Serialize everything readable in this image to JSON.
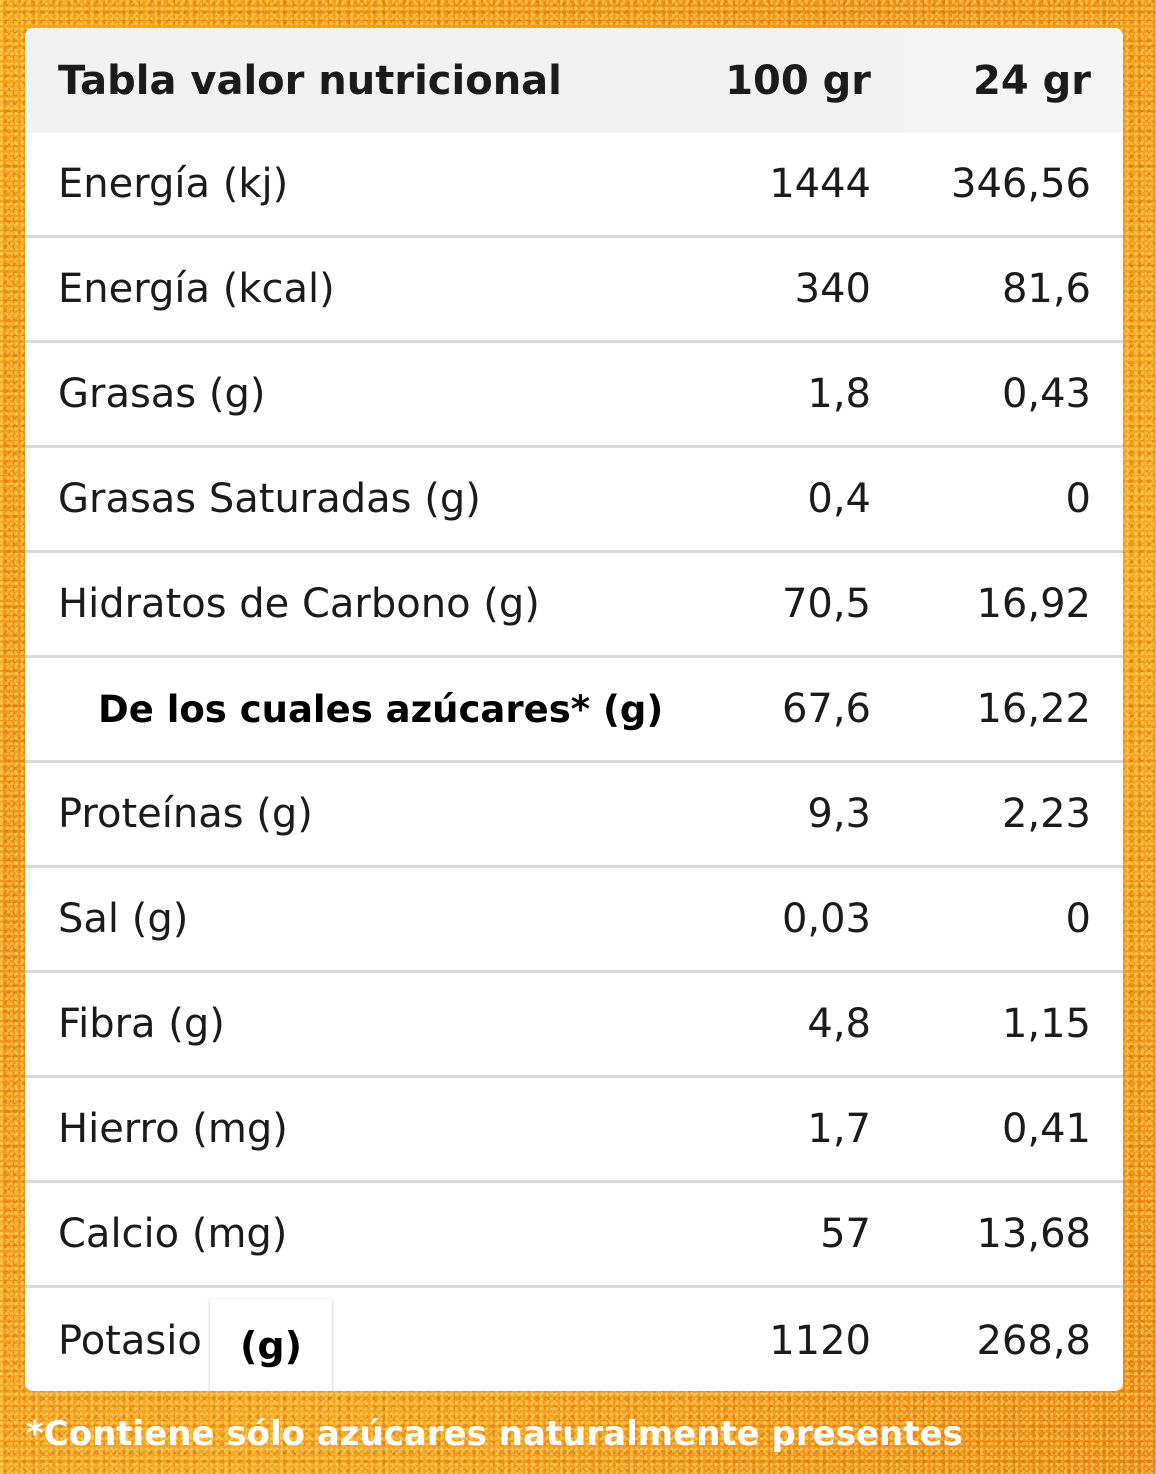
{
  "table": {
    "header": {
      "title": "Tabla valor nutricional",
      "col1": "100 gr",
      "col2": "24 gr"
    },
    "rows": [
      {
        "name": "Energía (kj)",
        "v100": "1444",
        "v24": "346,56"
      },
      {
        "name": "Energía (kcal)",
        "v100": "340",
        "v24": "81,6"
      },
      {
        "name": "Grasas (g)",
        "v100": "1,8",
        "v24": "0,43"
      },
      {
        "name": "Grasas Saturadas (g)",
        "v100": "0,4",
        "v24": "0"
      },
      {
        "name": "Hidratos de Carbono (g)",
        "v100": "70,5",
        "v24": "16,92"
      },
      {
        "name": "De los cuales azúcares* (g)",
        "v100": "67,6",
        "v24": "16,22"
      },
      {
        "name": "Proteínas (g)",
        "v100": "9,3",
        "v24": "2,23"
      },
      {
        "name": "Sal (g)",
        "v100": "0,03",
        "v24": "0"
      },
      {
        "name": "Fibra (g)",
        "v100": "4,8",
        "v24": "1,15"
      },
      {
        "name": "Hierro (mg)",
        "v100": "1,7",
        "v24": "0,41"
      },
      {
        "name": "Calcio (mg)",
        "v100": "57",
        "v24": "13,68"
      },
      {
        "name": "Potasio",
        "unit_patch": "(g)",
        "v100": "1120",
        "v24": "268,8"
      }
    ]
  },
  "footnote": "*Contiene sólo azúcares naturalmente presentes",
  "colors": {
    "background": "#f4931a",
    "card": "#ffffff",
    "header": "#f2f2f2",
    "divider": "#d9d9d9"
  }
}
